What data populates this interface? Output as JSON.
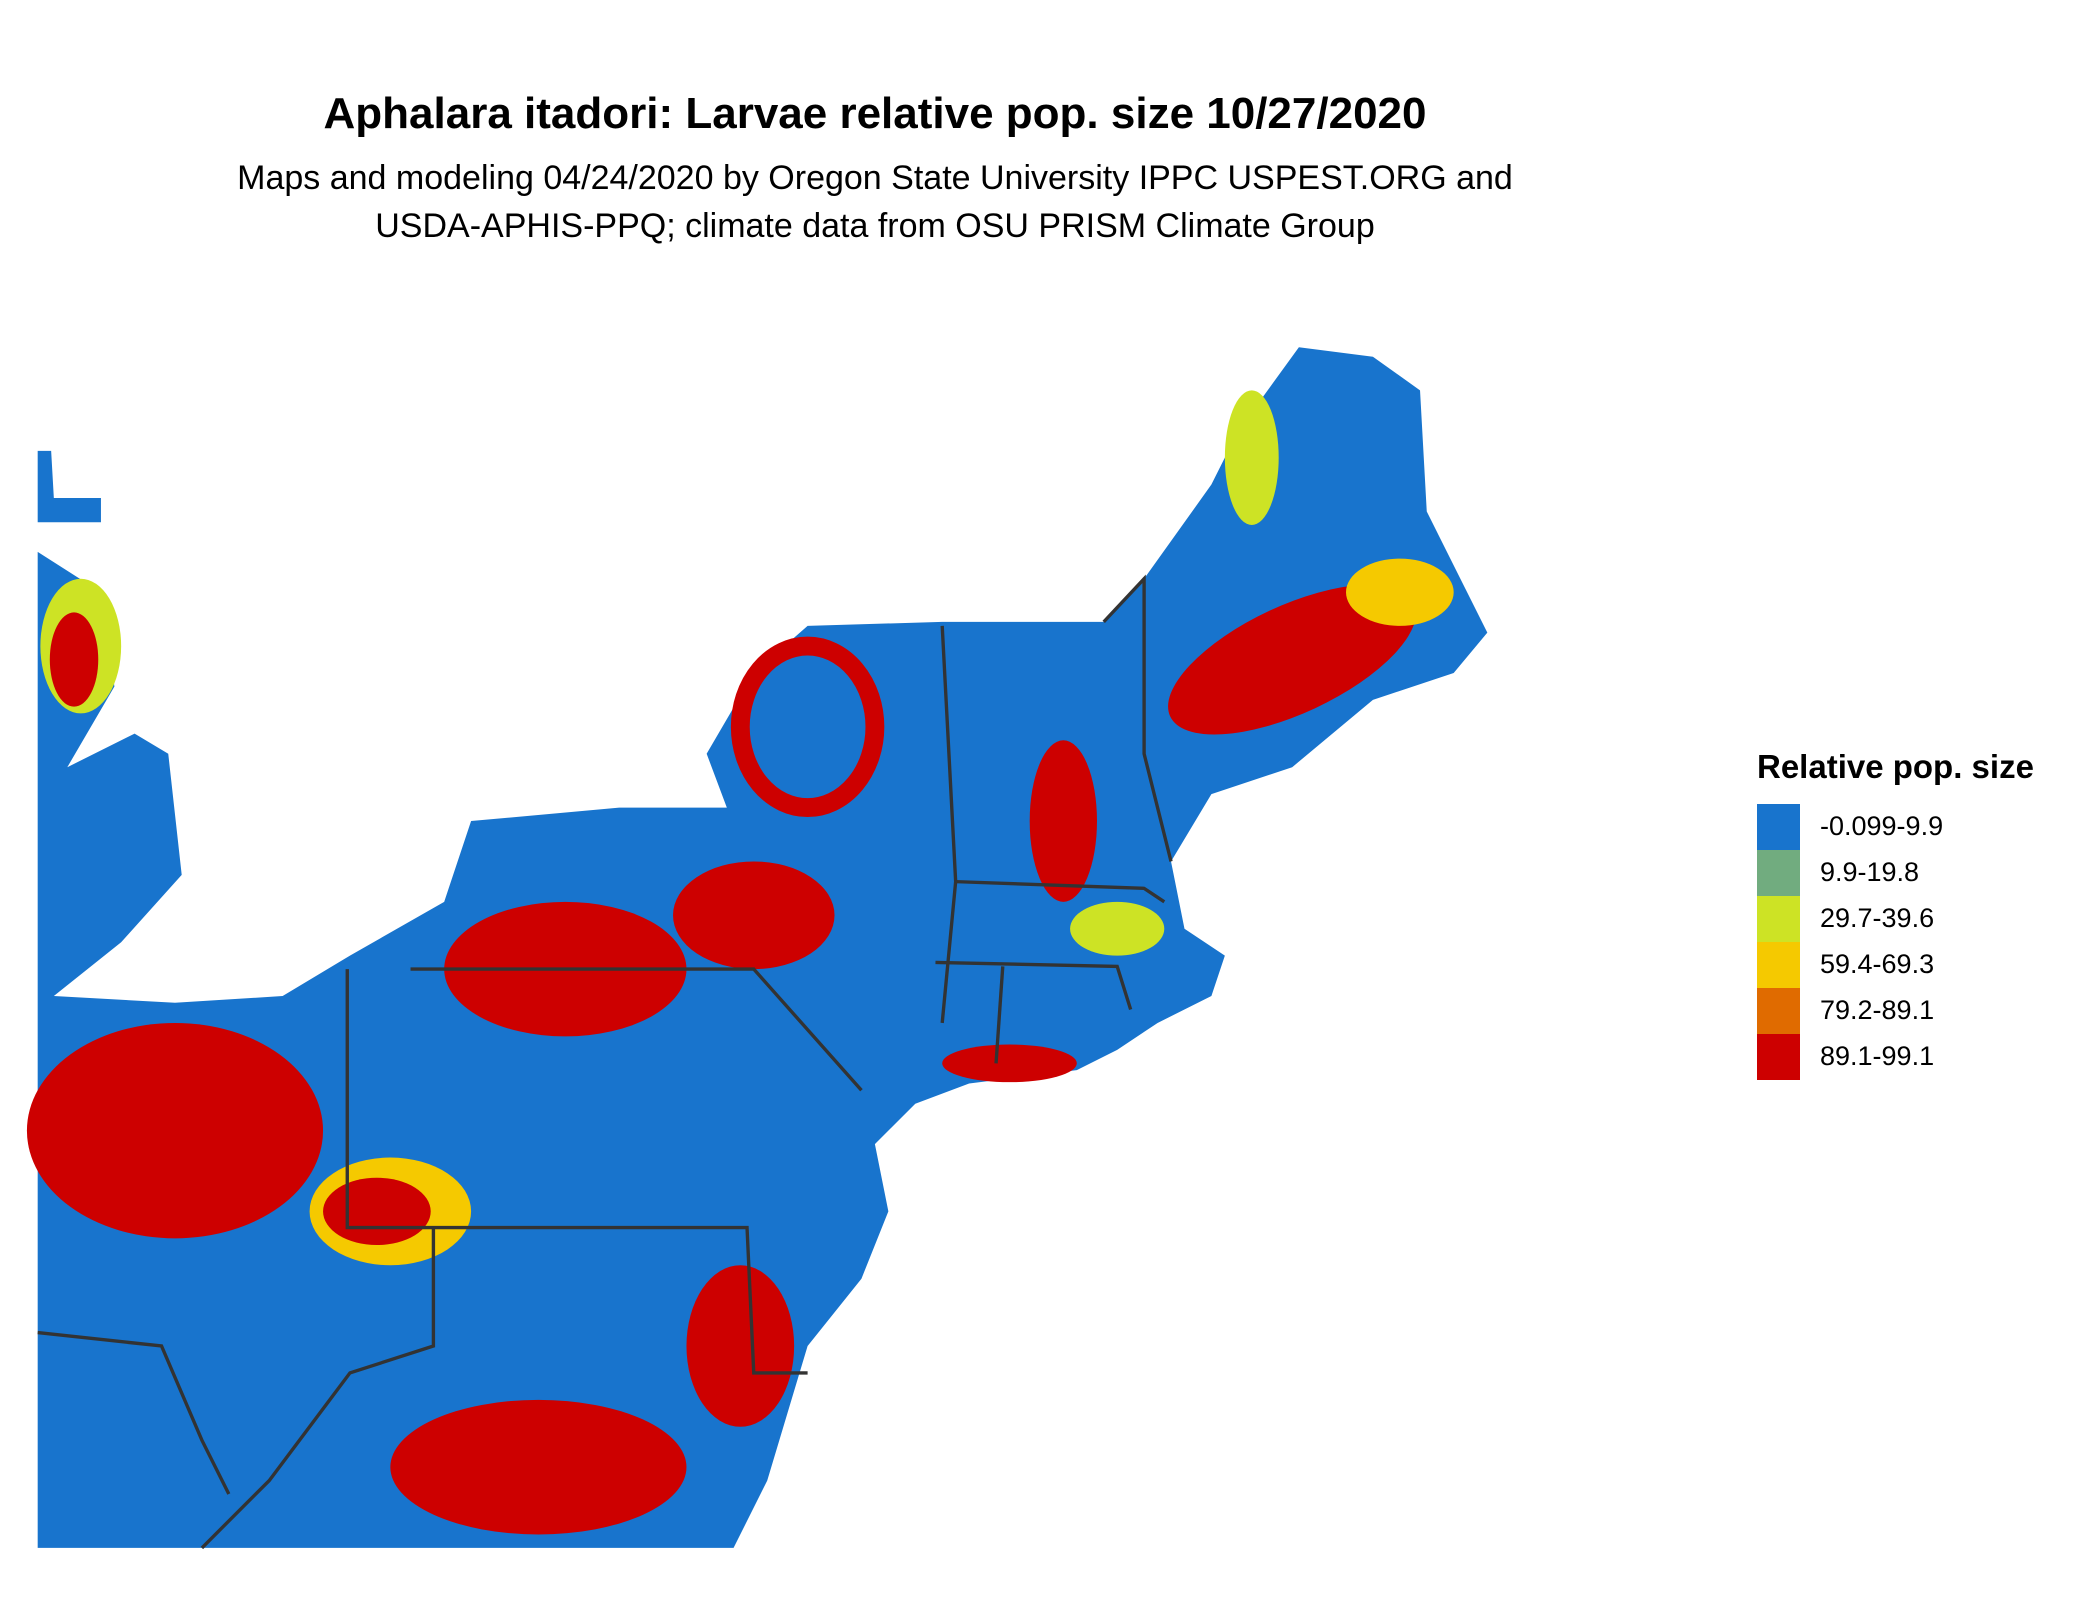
{
  "title": "Aphalara itadori: Larvae relative pop. size 10/27/2020",
  "subtitle": [
    "Maps and modeling 04/24/2020 by Oregon State University IPPC USPEST.ORG and",
    "USDA-APHIS-PPQ; climate data from OSU PRISM Climate Group"
  ],
  "legend": {
    "title": "Relative pop. size",
    "items": [
      {
        "label": "-0.099-9.9",
        "color": "#1874cd"
      },
      {
        "label": "9.9-19.8",
        "color": "#71ac7f"
      },
      {
        "label": "29.7-39.6",
        "color": "#cde325"
      },
      {
        "label": "59.4-69.3",
        "color": "#f5c900"
      },
      {
        "label": "79.2-89.1",
        "color": "#e06b00"
      },
      {
        "label": "89.1-99.1",
        "color": "#cd0000"
      }
    ]
  }
}
